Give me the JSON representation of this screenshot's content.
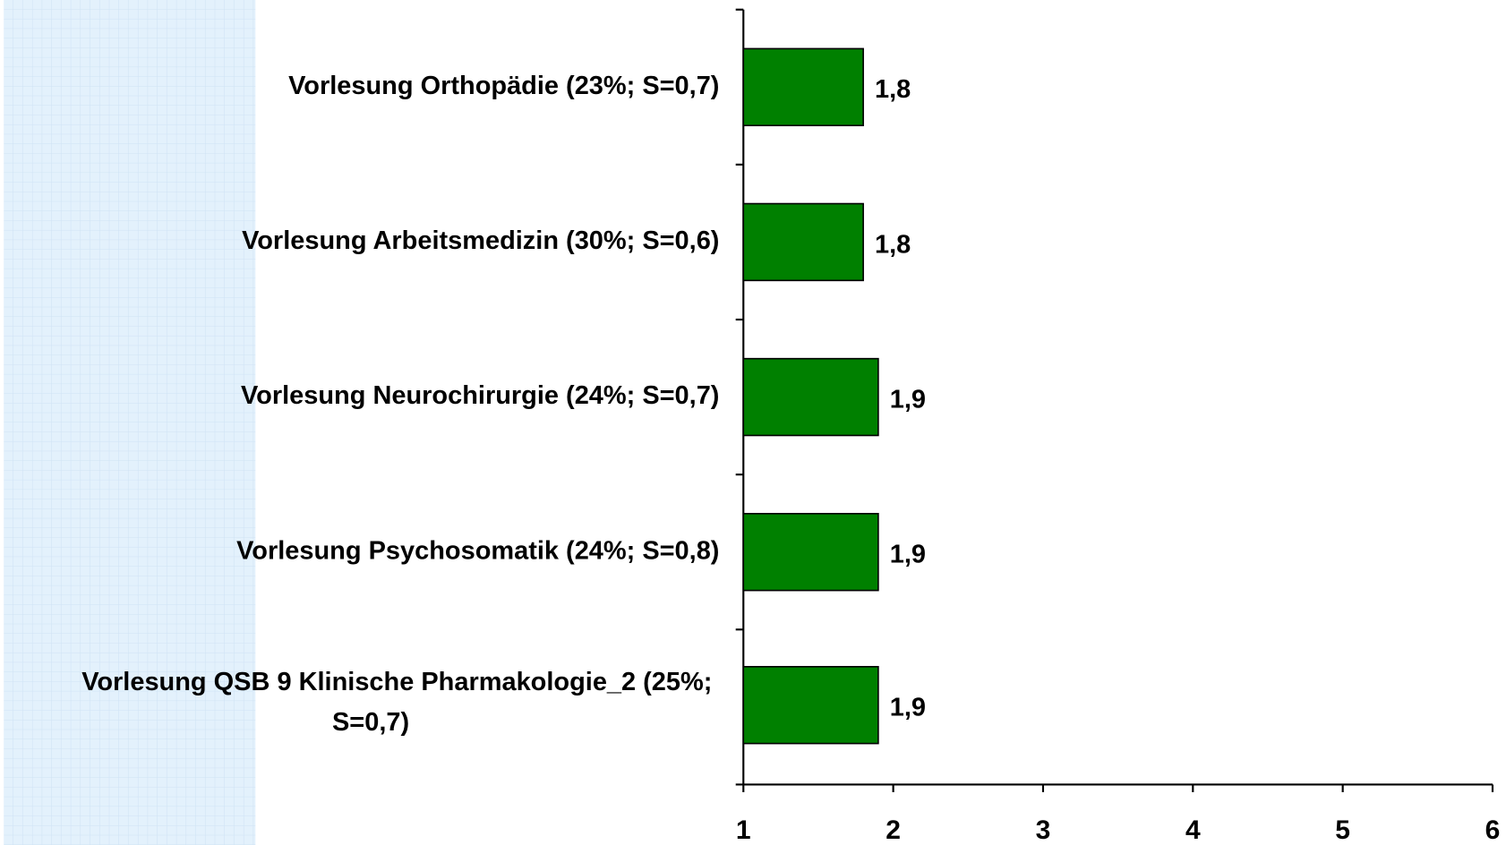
{
  "chart_data": {
    "type": "bar",
    "orientation": "horizontal",
    "categories": [
      "Vorlesung Orthopädie (23%; S=0,7)",
      "Vorlesung Arbeitsmedizin (30%; S=0,6)",
      "Vorlesung Neurochirurgie (24%; S=0,7)",
      "Vorlesung Psychosomatik (24%; S=0,8)",
      "Vorlesung QSB 9 Klinische Pharmakologie_2 (25%; S=0,7)"
    ],
    "values": [
      1.8,
      1.8,
      1.9,
      1.9,
      1.9
    ],
    "value_labels": [
      "1,8",
      "1,8",
      "1,9",
      "1,9",
      "1,9"
    ],
    "color": "#008000",
    "xlim": [
      1,
      6
    ],
    "xticks": [
      1,
      2,
      3,
      4,
      5,
      6
    ],
    "grid": false
  }
}
